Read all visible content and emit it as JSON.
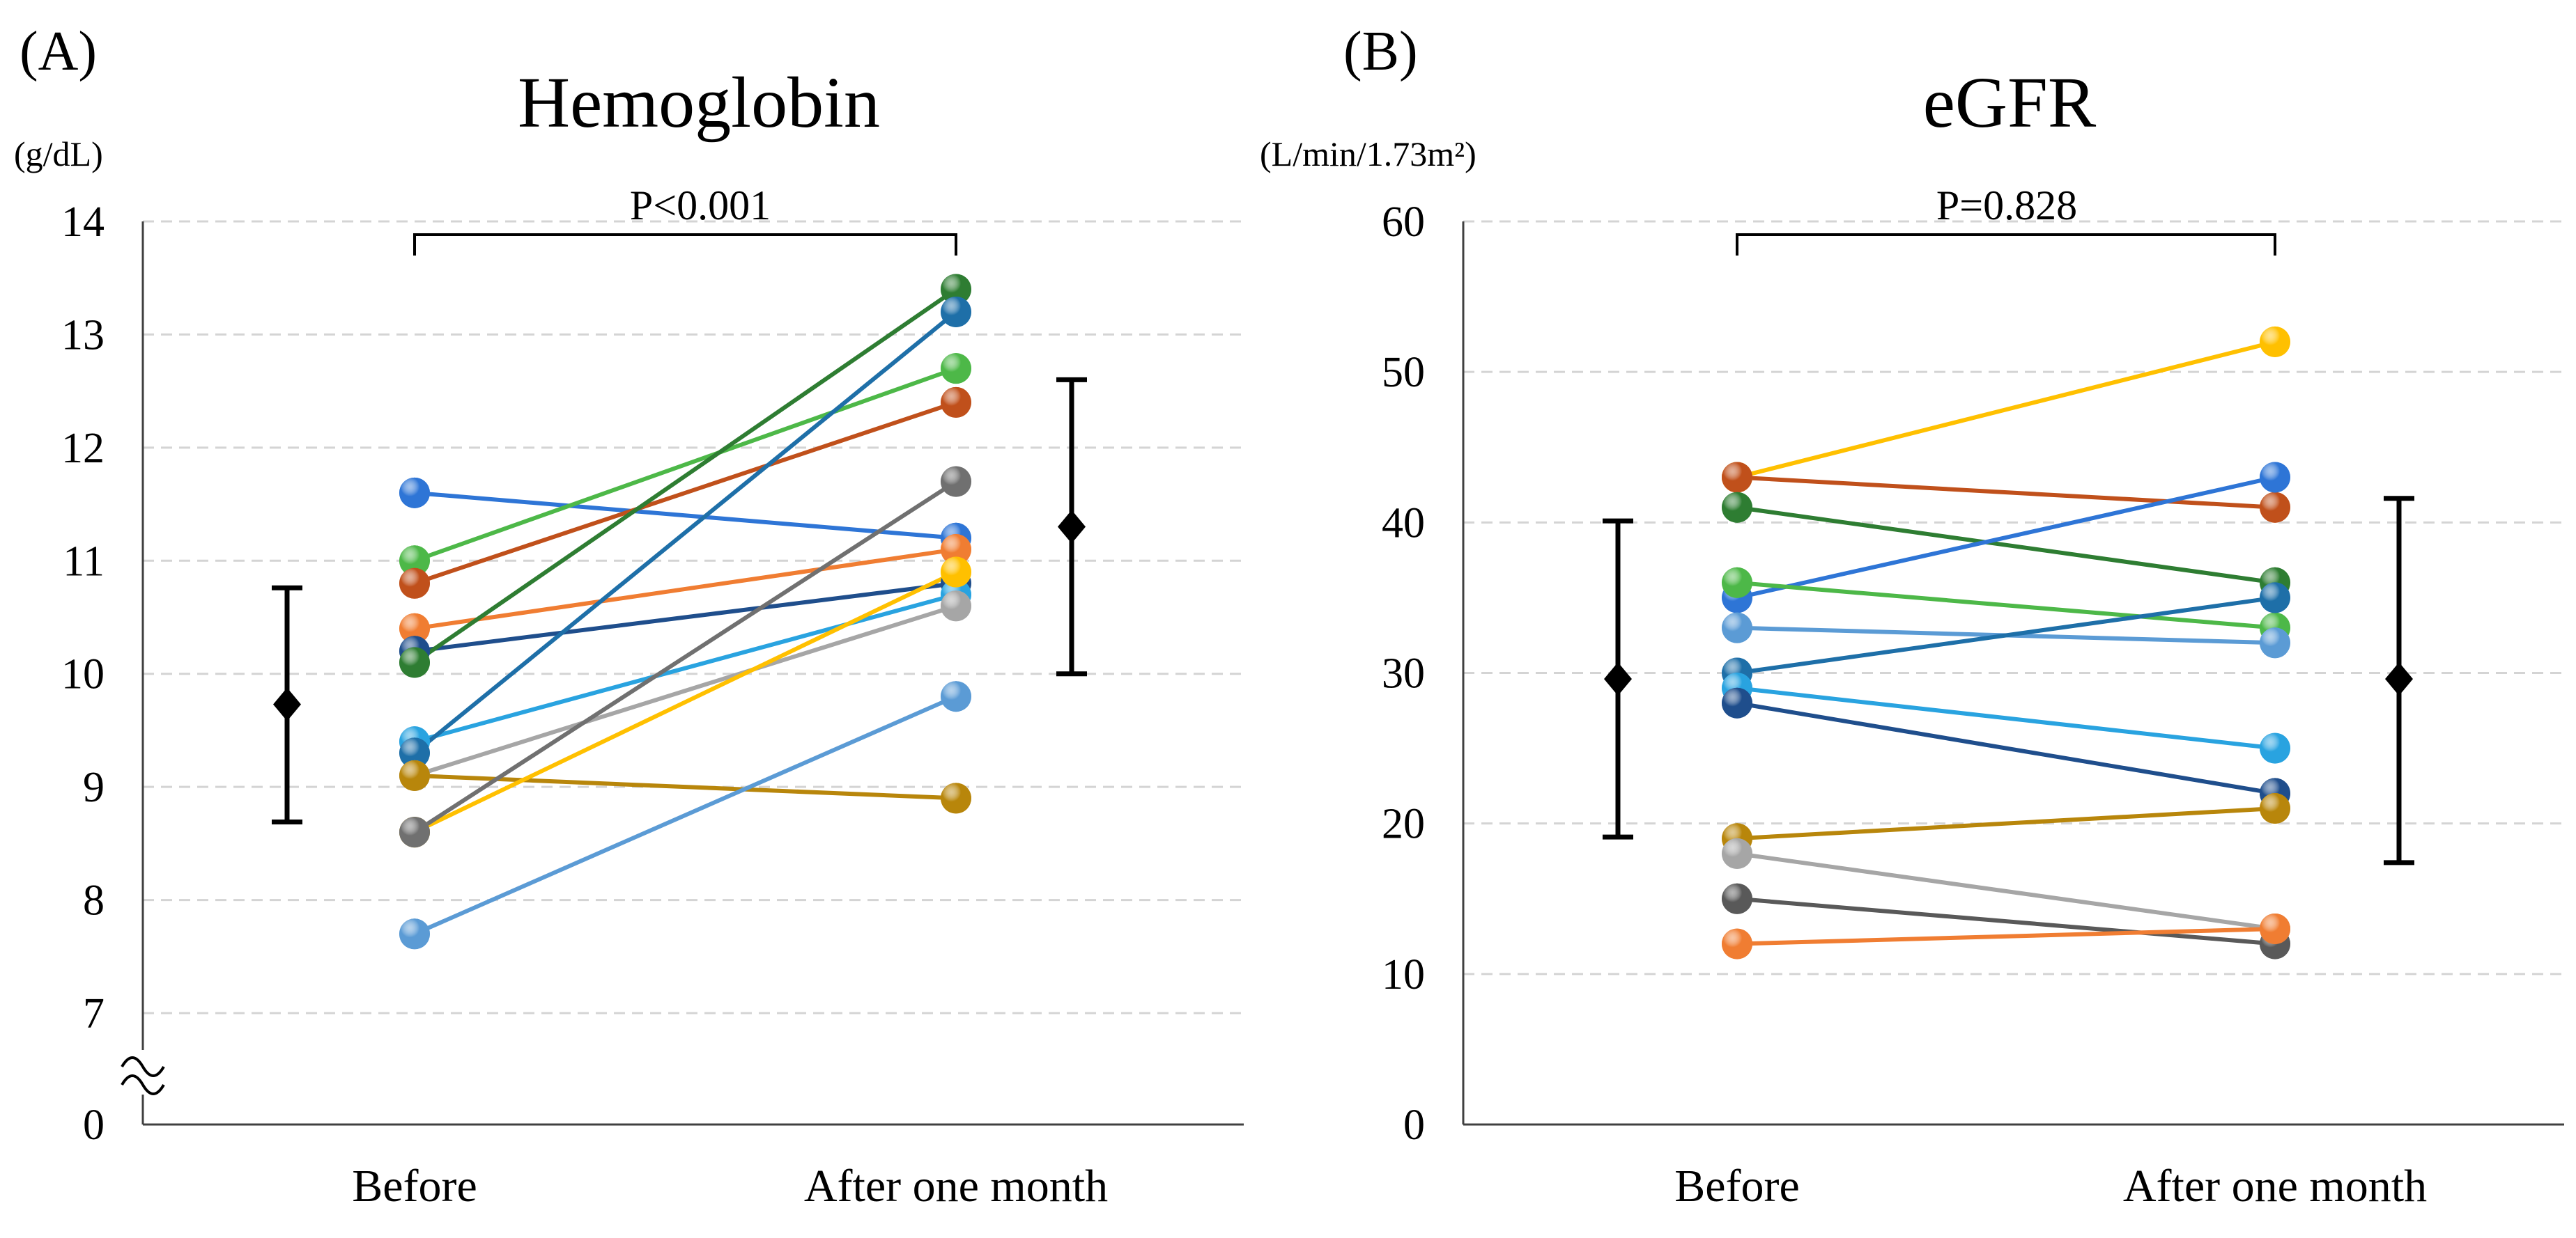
{
  "chart_data": [
    {
      "type": "line",
      "panel_label": "(A)",
      "title": "Hemoglobin",
      "ylabel": "(g/dL)",
      "xlabel": "",
      "categories": [
        "Before",
        "After one month"
      ],
      "ylim": [
        6.4,
        14
      ],
      "yticks": [
        7,
        8,
        9,
        10,
        11,
        12,
        13,
        14
      ],
      "y_break_label": "0",
      "grid": true,
      "p_value": "P<0.001",
      "series": [
        {
          "name": "1",
          "color": "#2E75D6",
          "values": [
            11.6,
            11.2
          ]
        },
        {
          "name": "2",
          "color": "#4DB848",
          "values": [
            11.0,
            12.7
          ]
        },
        {
          "name": "3",
          "color": "#C0501B",
          "values": [
            10.8,
            12.4
          ]
        },
        {
          "name": "4",
          "color": "#F07D32",
          "values": [
            10.4,
            11.1
          ]
        },
        {
          "name": "5",
          "color": "#1F4E8C",
          "values": [
            10.2,
            10.8
          ]
        },
        {
          "name": "6",
          "color": "#2E7D32",
          "values": [
            10.1,
            13.4
          ]
        },
        {
          "name": "7",
          "color": "#29A3E0",
          "values": [
            9.4,
            10.7
          ]
        },
        {
          "name": "8",
          "color": "#1E6FA8",
          "values": [
            9.3,
            13.2
          ]
        },
        {
          "name": "9",
          "color": "#A6A6A6",
          "values": [
            9.1,
            10.6
          ]
        },
        {
          "name": "10",
          "color": "#B8860B",
          "values": [
            9.1,
            8.9
          ]
        },
        {
          "name": "11",
          "color": "#FFC000",
          "values": [
            8.6,
            10.9
          ]
        },
        {
          "name": "12",
          "color": "#707070",
          "values": [
            8.6,
            11.7
          ]
        },
        {
          "name": "13",
          "color": "#5B9BD5",
          "values": [
            7.7,
            9.8
          ]
        }
      ],
      "summary": [
        {
          "label": "Before",
          "mean": 9.73,
          "lower": 8.69,
          "upper": 10.76
        },
        {
          "label": "After one month",
          "mean": 11.3,
          "lower": 10.0,
          "upper": 12.6
        }
      ]
    },
    {
      "type": "line",
      "panel_label": "(B)",
      "title": "eGFR",
      "ylabel": "(L/min/1.73m²)",
      "xlabel": "",
      "categories": [
        "Before",
        "After one month"
      ],
      "ylim": [
        0,
        60
      ],
      "yticks": [
        0,
        10,
        20,
        30,
        40,
        50,
        60
      ],
      "grid": true,
      "p_value": "P=0.828",
      "series": [
        {
          "name": "1",
          "color": "#FFC000",
          "values": [
            43,
            52
          ]
        },
        {
          "name": "2",
          "color": "#C0501B",
          "values": [
            43,
            41
          ]
        },
        {
          "name": "3",
          "color": "#2E7D32",
          "values": [
            41,
            36
          ]
        },
        {
          "name": "4",
          "color": "#2E75D6",
          "values": [
            35,
            43
          ]
        },
        {
          "name": "5",
          "color": "#4DB848",
          "values": [
            36,
            33
          ]
        },
        {
          "name": "6",
          "color": "#5B9BD5",
          "values": [
            33,
            32
          ]
        },
        {
          "name": "7",
          "color": "#1E6FA8",
          "values": [
            30,
            35
          ]
        },
        {
          "name": "8",
          "color": "#29A3E0",
          "values": [
            29,
            25
          ]
        },
        {
          "name": "9",
          "color": "#1F4E8C",
          "values": [
            28,
            22
          ]
        },
        {
          "name": "10",
          "color": "#B8860B",
          "values": [
            19,
            21
          ]
        },
        {
          "name": "11",
          "color": "#A6A6A6",
          "values": [
            18,
            13
          ]
        },
        {
          "name": "12",
          "color": "#595959",
          "values": [
            15,
            12
          ]
        },
        {
          "name": "13",
          "color": "#F07D32",
          "values": [
            12,
            13
          ]
        }
      ],
      "summary": [
        {
          "label": "Before",
          "mean": 29.6,
          "lower": 19.1,
          "upper": 40.1
        },
        {
          "label": "After one month",
          "mean": 29.6,
          "lower": 17.4,
          "upper": 41.6
        }
      ]
    }
  ]
}
